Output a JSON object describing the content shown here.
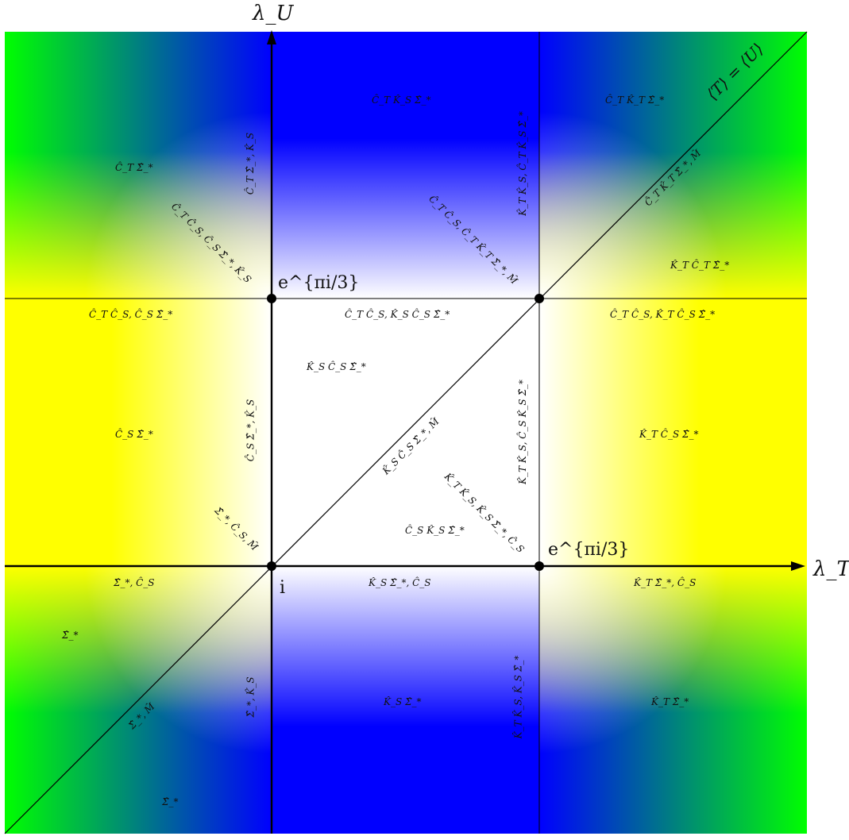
{
  "axes": {
    "x_label": "λ_T",
    "y_label": "λ_U",
    "diagonal_label": "⟨T⟩ = ⟨U⟩"
  },
  "points": {
    "origin": "i",
    "upper_left": "e^{πi/3}",
    "lower_right": "e^{πi/3}"
  },
  "regions": {
    "top_left": "Ĉ_T Σ̂_*",
    "top_center": "Ĉ_T K̂_S Σ̂_*",
    "top_right": "Ĉ_T K̂_T Σ̂_*",
    "right_upper": "K̂_T Ĉ_T Σ̂_*",
    "mid_left": "Ĉ_S Σ̂_*",
    "center_upper": "K̂_S Ĉ_S Σ̂_*",
    "center_lower": "Ĉ_S K̂_S Σ̂_*",
    "mid_right": "K̂_T Ĉ_S Σ̂_*",
    "bottom_left_a": "Σ̂_*",
    "bottom_left_b": "Σ̂_*",
    "bottom_center": "K̂_S Σ̂_*",
    "bottom_right": "K̂_T Σ̂_*"
  },
  "boundaries": {
    "top_row_left": "Ĉ_T Ĉ_S, Ĉ_S Σ̂_*",
    "top_row_center": "Ĉ_T Ĉ_S, K̂_S Ĉ_S Σ̂_*",
    "top_row_right": "Ĉ_T Ĉ_S, K̂_T Ĉ_S Σ̂_*",
    "bottom_row_left": "Σ̂_*, Ĉ_S",
    "bottom_row_center": "K̂_S Σ̂_*, Ĉ_S",
    "bottom_row_right": "K̂_T Σ̂_*, Ĉ_S",
    "left_vert_top": "Ĉ_T Σ̂_*, K̂_S",
    "left_vert_mid": "Ĉ_S Σ̂_*, K̂_S",
    "left_vert_bottom": "Σ̂_*, K̂_S",
    "right_vert_top": "K̂_T K̂_S, Ĉ_T K̂_S Σ̂_*",
    "right_vert_mid": "K̂_T K̂_S, Ĉ_S K̂_S Σ̂_*",
    "right_vert_bottom": "K̂_T K̂_S, K̂_S Σ̂_*",
    "diag_upper_left": "Ĉ_T Ĉ_S, Ĉ_S Σ̂_*, K̂_S",
    "diag_upper_right": "Ĉ_T Ĉ_S, Ĉ_T K̂_T Σ̂_*, M̂",
    "diag_lower_right": "K̂_T K̂_S, K̂_S Σ̂_*, Ĉ_S",
    "diag_main_far": "Ĉ_T K̂_T Σ̂_*, M̂",
    "diag_main_mid": "K̂_S Ĉ_S Σ̂_*, M̂",
    "diag_main_origin": "Σ̂_*, Ĉ_S, M̂",
    "diag_main_low": "Σ̂_*, M̂"
  },
  "colors": {
    "blue": "#0000ff",
    "green": "#00ff00",
    "yellow": "#ffff00",
    "white": "#ffffff",
    "line": "#000000"
  }
}
